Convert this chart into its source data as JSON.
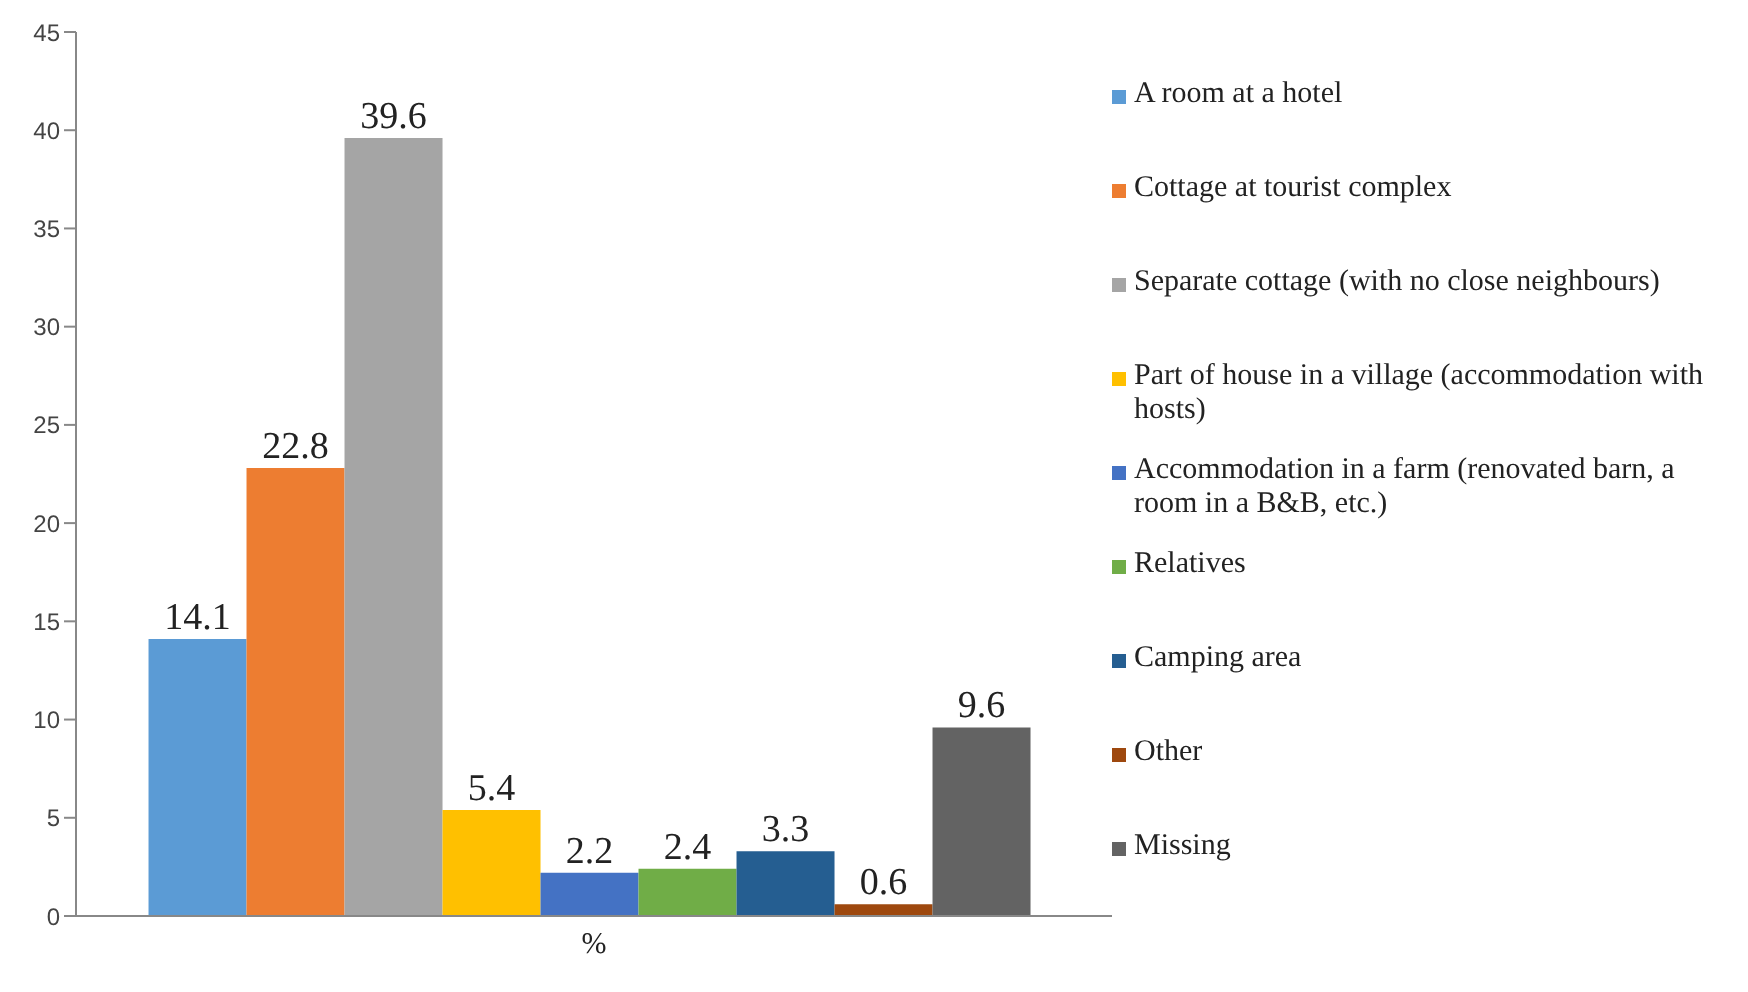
{
  "chart_data": {
    "type": "bar",
    "categories": [
      "%"
    ],
    "series": [
      {
        "name": "A room at a hotel",
        "color": "#5b9bd5",
        "values": [
          14.1
        ]
      },
      {
        "name": "Cottage at tourist complex",
        "color": "#ed7d31",
        "values": [
          22.8
        ]
      },
      {
        "name": "Separate cottage (with no close neighbours)",
        "color": "#a5a5a5",
        "values": [
          39.6
        ]
      },
      {
        "name": "Part of house in a village (accommodation with hosts)",
        "color": "#ffc000",
        "values": [
          5.4
        ]
      },
      {
        "name": "Accommodation in a farm (renovated barn, a room in a B&B, etc.)",
        "color": "#4472c4",
        "values": [
          2.2
        ]
      },
      {
        "name": "Relatives",
        "color": "#70ad47",
        "values": [
          2.4
        ]
      },
      {
        "name": "Camping area",
        "color": "#255e91",
        "values": [
          3.3
        ]
      },
      {
        "name": "Other",
        "color": "#9e480e",
        "values": [
          0.6
        ]
      },
      {
        "name": "Missing",
        "color": "#636363",
        "values": [
          9.6
        ]
      }
    ],
    "ylim": [
      0,
      45
    ],
    "yticks": [
      0,
      5,
      10,
      15,
      20,
      25,
      30,
      35,
      40,
      45
    ],
    "grid": false,
    "legend": "right",
    "data_labels": true
  }
}
